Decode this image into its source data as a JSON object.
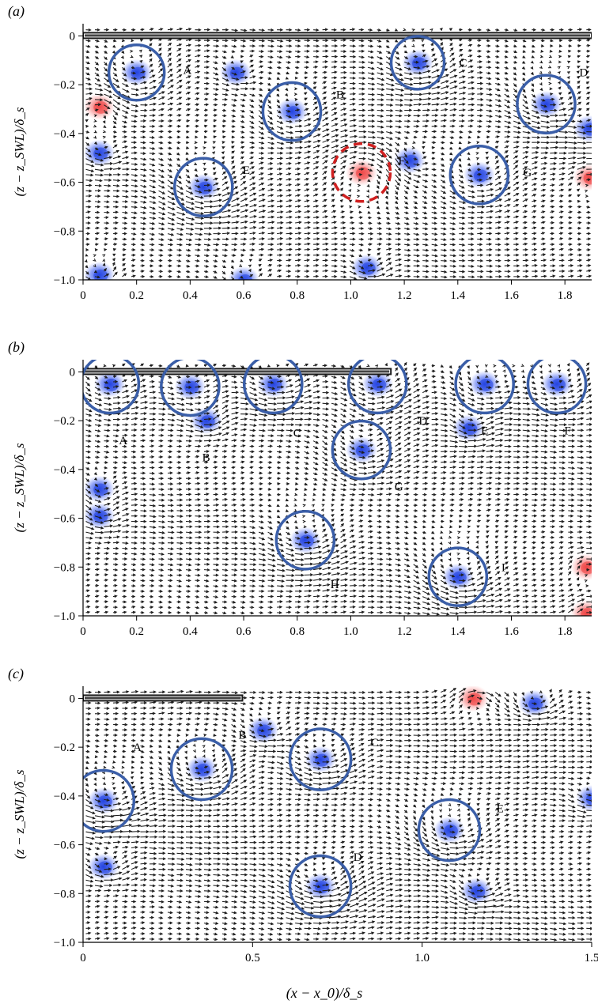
{
  "colors": {
    "vector": "#1c1c1c",
    "circle_blue": "#3a5ea8",
    "circle_red": "#d02020",
    "blob_blue": "#1f3fe0",
    "blob_red": "#ee3c3c",
    "axis": "#000000",
    "plate": "#1a1a1a"
  },
  "shared": {
    "ylabel": "(z − z_SWL)/δ_s",
    "xlabel": "(x − x_0)/δ_s"
  },
  "chart_data": [
    {
      "type": "vector_field",
      "panel_label": "(a)",
      "xlim": [
        0,
        1.9
      ],
      "ylim": [
        -1.0,
        0.05
      ],
      "xticks": [
        0,
        0.2,
        0.4,
        0.6,
        0.8,
        1.0,
        1.2,
        1.4,
        1.6,
        1.8
      ],
      "xtick_labels": [
        "0",
        "0.2",
        "0.4",
        "0.6",
        "0.8",
        "1.0",
        "1.2",
        "1.4",
        "1.6",
        "1.8"
      ],
      "yticks": [
        0,
        -0.2,
        -0.4,
        -0.6,
        -0.8,
        -1.0
      ],
      "ytick_labels": [
        "0",
        "−0.2",
        "−0.4",
        "−0.6",
        "−0.8",
        "−1.0"
      ],
      "plate": [
        0,
        1.9
      ],
      "vortices": [
        {
          "label": "A",
          "x": 0.2,
          "y": -0.15,
          "r": 0.115,
          "sense": "blue",
          "lx": 0.39,
          "ly": -0.14
        },
        {
          "label": "B",
          "x": 0.78,
          "y": -0.31,
          "r": 0.12,
          "sense": "blue",
          "lx": 0.96,
          "ly": -0.24
        },
        {
          "label": "C",
          "x": 1.25,
          "y": -0.11,
          "r": 0.11,
          "sense": "blue",
          "lx": 1.42,
          "ly": -0.11
        },
        {
          "label": "D",
          "x": 1.73,
          "y": -0.28,
          "r": 0.12,
          "sense": "blue",
          "lx": 1.87,
          "ly": -0.15
        },
        {
          "label": "E",
          "x": 0.45,
          "y": -0.62,
          "r": 0.12,
          "sense": "blue",
          "lx": 0.61,
          "ly": -0.55
        },
        {
          "label": "F",
          "x": 1.04,
          "y": -0.56,
          "r": 0.12,
          "sense": "red",
          "lx": 1.19,
          "ly": -0.51
        },
        {
          "label": "G",
          "x": 1.48,
          "y": -0.57,
          "r": 0.12,
          "sense": "blue",
          "lx": 1.66,
          "ly": -0.56
        }
      ],
      "extra_blobs": [
        {
          "x": 0.57,
          "y": -0.15,
          "s": "blue"
        },
        {
          "x": 0.06,
          "y": -0.48,
          "s": "blue"
        },
        {
          "x": 1.06,
          "y": -0.95,
          "s": "blue"
        },
        {
          "x": 0.6,
          "y": -1.0,
          "s": "blue"
        },
        {
          "x": 0.06,
          "y": -0.98,
          "s": "blue"
        },
        {
          "x": 1.22,
          "y": -0.51,
          "s": "blue"
        },
        {
          "x": 1.89,
          "y": -0.38,
          "s": "blue"
        },
        {
          "x": 0.06,
          "y": -0.29,
          "s": "red"
        },
        {
          "x": 1.89,
          "y": -0.58,
          "s": "red"
        }
      ]
    },
    {
      "type": "vector_field",
      "panel_label": "(b)",
      "xlim": [
        0,
        1.9
      ],
      "ylim": [
        -1.0,
        0.05
      ],
      "xticks": [
        0,
        0.2,
        0.4,
        0.6,
        0.8,
        1.0,
        1.2,
        1.4,
        1.6,
        1.8
      ],
      "xtick_labels": [
        "0",
        "0.2",
        "0.4",
        "0.6",
        "0.8",
        "1.0",
        "1.2",
        "1.4",
        "1.6",
        "1.8"
      ],
      "yticks": [
        0,
        -0.2,
        -0.4,
        -0.6,
        -0.8,
        -1.0
      ],
      "ytick_labels": [
        "0",
        "−0.2",
        "−0.4",
        "−0.6",
        "−0.8",
        "−1.0"
      ],
      "plate": [
        0,
        1.15
      ],
      "vortices": [
        {
          "label": "A",
          "x": 0.1,
          "y": -0.05,
          "r": 0.12,
          "sense": "blue",
          "lx": 0.15,
          "ly": -0.28
        },
        {
          "label": "B",
          "x": 0.4,
          "y": -0.06,
          "r": 0.12,
          "sense": "blue",
          "lx": 0.46,
          "ly": -0.35
        },
        {
          "label": "C",
          "x": 0.71,
          "y": -0.05,
          "r": 0.12,
          "sense": "blue",
          "lx": 0.8,
          "ly": -0.25
        },
        {
          "label": "D",
          "x": 1.1,
          "y": -0.05,
          "r": 0.12,
          "sense": "blue",
          "lx": 1.27,
          "ly": -0.2
        },
        {
          "label": "E",
          "x": 1.5,
          "y": -0.05,
          "r": 0.12,
          "sense": "blue",
          "lx": 1.5,
          "ly": -0.24
        },
        {
          "label": "F",
          "x": 1.77,
          "y": -0.05,
          "r": 0.12,
          "sense": "blue",
          "lx": 1.81,
          "ly": -0.24
        },
        {
          "label": "G",
          "x": 1.04,
          "y": -0.32,
          "r": 0.12,
          "sense": "blue",
          "lx": 1.18,
          "ly": -0.47
        },
        {
          "label": "H",
          "x": 0.83,
          "y": -0.69,
          "r": 0.12,
          "sense": "blue",
          "lx": 0.94,
          "ly": -0.87
        },
        {
          "label": "I",
          "x": 1.4,
          "y": -0.84,
          "r": 0.12,
          "sense": "blue",
          "lx": 1.57,
          "ly": -0.8
        }
      ],
      "extra_blobs": [
        {
          "x": 0.46,
          "y": -0.2,
          "s": "blue"
        },
        {
          "x": 1.44,
          "y": -0.23,
          "s": "blue"
        },
        {
          "x": 0.06,
          "y": -0.48,
          "s": "blue"
        },
        {
          "x": 0.06,
          "y": -0.59,
          "s": "blue"
        },
        {
          "x": 1.88,
          "y": -0.8,
          "s": "red"
        },
        {
          "x": 1.88,
          "y": -0.99,
          "s": "red"
        }
      ]
    },
    {
      "type": "vector_field",
      "panel_label": "(c)",
      "xlim": [
        0,
        1.5
      ],
      "ylim": [
        -1.0,
        0.05
      ],
      "xticks": [
        0,
        0.5,
        1.0,
        1.5
      ],
      "xtick_labels": [
        "0",
        "0.5",
        "1.0",
        "1.5"
      ],
      "yticks": [
        0,
        -0.2,
        -0.4,
        -0.6,
        -0.8,
        -1.0
      ],
      "ytick_labels": [
        "0",
        "−0.2",
        "−0.4",
        "−0.6",
        "−0.8",
        "−1.0"
      ],
      "plate": [
        0,
        0.47
      ],
      "vortices": [
        {
          "label": "A",
          "x": 0.35,
          "y": -0.29,
          "r": 0.1,
          "sense": "blue",
          "lx": 0.16,
          "ly": -0.2
        },
        {
          "label": "B",
          "x": 0.53,
          "y": -0.13,
          "r": 0.0,
          "sense": "blue",
          "lx": 0.47,
          "ly": -0.15
        },
        {
          "label": "C",
          "x": 0.7,
          "y": -0.25,
          "r": 0.1,
          "sense": "blue",
          "lx": 0.86,
          "ly": -0.18
        },
        {
          "label": "D",
          "x": 0.7,
          "y": -0.77,
          "r": 0.1,
          "sense": "blue",
          "lx": 0.81,
          "ly": -0.65
        },
        {
          "label": "E",
          "x": 1.08,
          "y": -0.54,
          "r": 0.1,
          "sense": "blue",
          "lx": 1.23,
          "ly": -0.45
        },
        {
          "label": "",
          "x": 0.06,
          "y": -0.42,
          "r": 0.1,
          "sense": "blue",
          "lx": 0,
          "ly": 0
        }
      ],
      "extra_blobs": [
        {
          "x": 0.06,
          "y": -0.69,
          "s": "blue"
        },
        {
          "x": 1.16,
          "y": -0.79,
          "s": "blue"
        },
        {
          "x": 1.33,
          "y": -0.02,
          "s": "blue"
        },
        {
          "x": 1.5,
          "y": -0.41,
          "s": "blue"
        },
        {
          "x": 1.15,
          "y": 0.0,
          "s": "red"
        }
      ]
    }
  ]
}
